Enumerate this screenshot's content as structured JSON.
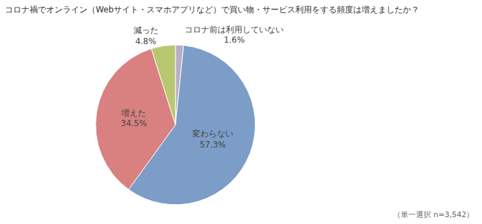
{
  "chart_data": {
    "type": "pie",
    "title": "コロナ禍でオンライン（Webサイト・スマホアプリなど）で買い物・サービス利用をする頻度は増えましたか？",
    "categories": [
      "コロナ前は利用していない",
      "変わらない",
      "増えた",
      "減った"
    ],
    "values": [
      1.6,
      57.3,
      34.5,
      4.8
    ],
    "value_labels": [
      "1.6%",
      "57.3%",
      "34.5%",
      "4.8%"
    ],
    "colors": [
      "#b8aec8",
      "#7b9dc8",
      "#d98080",
      "#b8c870"
    ],
    "data_labels": true,
    "annotations": [
      "（単一選択 n=3,542）"
    ]
  }
}
